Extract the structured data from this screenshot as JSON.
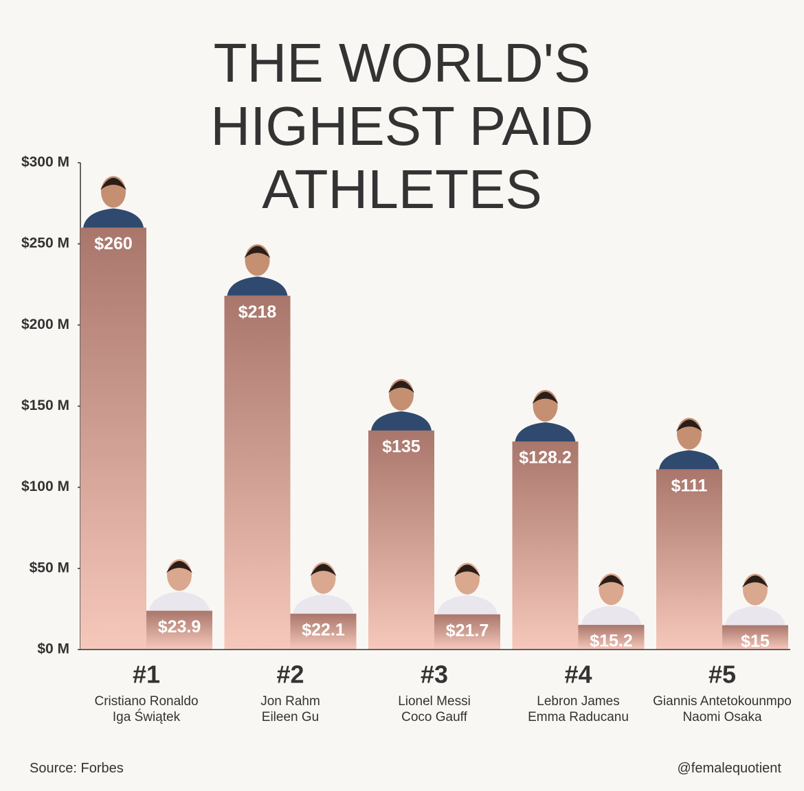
{
  "chart_data": {
    "type": "bar",
    "title": "THE WORLD'S HIGHEST PAID ATHLETES",
    "categories": [
      "#1",
      "#2",
      "#3",
      "#4",
      "#5"
    ],
    "series": [
      {
        "color": "#a9766b",
        "values": [
          260,
          218,
          135,
          128.2,
          111
        ],
        "value_labels": [
          "$260",
          "$218",
          "$135",
          "$128.2",
          "$111"
        ],
        "labels": [
          "Cristiano Ronaldo",
          "Jon Rahm",
          "Lionel Messi",
          "Lebron James",
          "Giannis Antetokounmpo"
        ]
      },
      {
        "color": "#a9766b",
        "values": [
          23.9,
          22.1,
          21.7,
          15.2,
          15
        ],
        "value_labels": [
          "$23.9",
          "$22.1",
          "$21.7",
          "$15.2",
          "$15"
        ],
        "labels": [
          "Iga Świątek",
          "Eileen Gu",
          "Coco Gauff",
          "Emma Raducanu",
          "Naomi Osaka"
        ]
      }
    ],
    "ylim": [
      0,
      300
    ],
    "yticks": [
      {
        "value": 0,
        "label": "$0 M"
      },
      {
        "value": 50,
        "label": "$50 M"
      },
      {
        "value": 100,
        "label": "$100 M"
      },
      {
        "value": 150,
        "label": "$150 M"
      },
      {
        "value": 200,
        "label": "$200 M"
      },
      {
        "value": 250,
        "label": "$250 M"
      },
      {
        "value": 300,
        "label": "$300 M"
      }
    ],
    "source": "Source: Forbes",
    "credit": "@femalequotient"
  }
}
